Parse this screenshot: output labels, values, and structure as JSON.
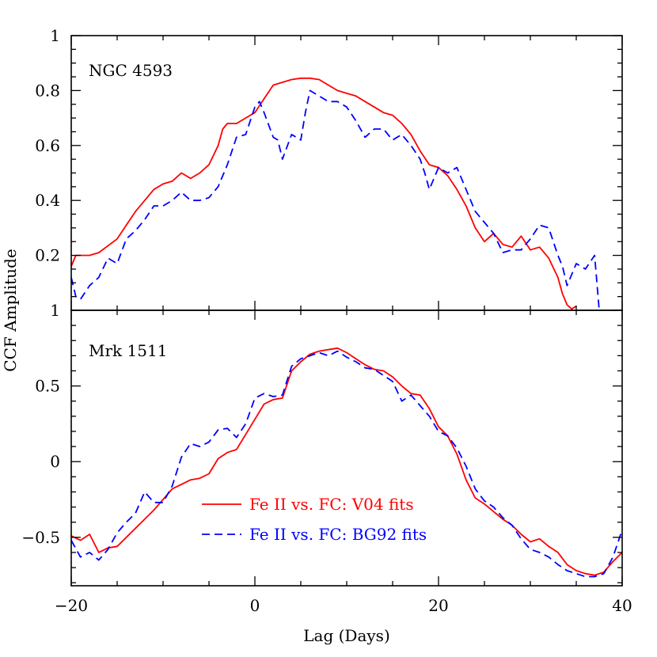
{
  "chart_data": {
    "shared": {
      "xlabel": "Lag (Days)",
      "ylabel": "CCF Amplitude",
      "xlim": [
        -20,
        40
      ],
      "xticks_major": [
        -20,
        0,
        20,
        40
      ],
      "xtick_labels": [
        "−20",
        "0",
        "20",
        "40"
      ],
      "xticks_minor_step": 5,
      "grid": false
    },
    "panels": [
      {
        "type": "line",
        "label": "NGC 4593",
        "ylim": [
          0,
          1
        ],
        "yticks_major": [
          0.2,
          0.4,
          0.6,
          0.8,
          1
        ],
        "ytick_labels": [
          "0.2",
          "0.4",
          "0.6",
          "0.8",
          "1"
        ],
        "yticks_minor_step": 0.05,
        "series": [
          {
            "color": "#ff0000",
            "style": "solid",
            "x": [
              -20,
              -19.5,
              -18,
              -17,
              -15,
              -14,
              -13,
              -12,
              -11,
              -10,
              -9,
              -8,
              -7,
              -6,
              -5,
              -4,
              -3.5,
              -3,
              -2,
              -1,
              0,
              1,
              2,
              3,
              4,
              5,
              6,
              7,
              8,
              9,
              10,
              11,
              12,
              13,
              14,
              15,
              16,
              17,
              18,
              19,
              20,
              21,
              22,
              23,
              24,
              25,
              26,
              27,
              28,
              29,
              30,
              31,
              32,
              33,
              33.5,
              34,
              34.5,
              35
            ],
            "y": [
              0.16,
              0.2,
              0.2,
              0.21,
              0.26,
              0.31,
              0.36,
              0.4,
              0.44,
              0.46,
              0.47,
              0.5,
              0.48,
              0.5,
              0.53,
              0.6,
              0.66,
              0.68,
              0.68,
              0.7,
              0.72,
              0.77,
              0.82,
              0.83,
              0.84,
              0.845,
              0.845,
              0.84,
              0.82,
              0.8,
              0.79,
              0.78,
              0.76,
              0.74,
              0.72,
              0.71,
              0.68,
              0.64,
              0.58,
              0.53,
              0.52,
              0.49,
              0.44,
              0.38,
              0.3,
              0.25,
              0.28,
              0.24,
              0.23,
              0.27,
              0.22,
              0.23,
              0.19,
              0.12,
              0.06,
              0.02,
              0.005,
              0.015
            ]
          },
          {
            "color": "#0000ff",
            "style": "dashed",
            "x": [
              -20,
              -19.5,
              -19,
              -18,
              -17,
              -16,
              -15,
              -14,
              -13,
              -12,
              -11,
              -10,
              -9,
              -8,
              -7,
              -6,
              -5,
              -4,
              -3,
              -2,
              -1,
              0,
              0.5,
              1,
              2,
              2.5,
              3,
              4,
              5,
              5.5,
              6,
              7,
              8,
              9,
              10,
              11,
              12,
              13,
              14,
              15,
              16,
              17,
              18,
              18.5,
              19,
              20,
              21,
              22,
              23,
              24,
              25,
              26,
              27,
              28,
              29,
              30,
              31,
              32,
              33,
              33.5,
              34,
              35,
              36,
              37,
              37.5
            ],
            "y": [
              0.12,
              0.05,
              0.04,
              0.09,
              0.12,
              0.19,
              0.17,
              0.26,
              0.29,
              0.33,
              0.38,
              0.38,
              0.4,
              0.43,
              0.4,
              0.4,
              0.41,
              0.45,
              0.53,
              0.63,
              0.64,
              0.74,
              0.76,
              0.72,
              0.63,
              0.62,
              0.55,
              0.64,
              0.62,
              0.72,
              0.8,
              0.78,
              0.76,
              0.76,
              0.74,
              0.69,
              0.63,
              0.66,
              0.66,
              0.62,
              0.64,
              0.6,
              0.55,
              0.5,
              0.44,
              0.52,
              0.5,
              0.52,
              0.44,
              0.36,
              0.32,
              0.28,
              0.21,
              0.22,
              0.22,
              0.26,
              0.31,
              0.3,
              0.2,
              0.16,
              0.09,
              0.17,
              0.15,
              0.2,
              0.0
            ]
          }
        ]
      },
      {
        "type": "line",
        "label": "Mrk 1511",
        "ylim": [
          -0.82,
          1
        ],
        "yticks_major": [
          -0.5,
          0,
          0.5,
          1
        ],
        "ytick_labels": [
          "−0.5",
          "0",
          "0.5",
          "1"
        ],
        "yticks_minor_step": 0.1,
        "legend_placement": "lower-center",
        "series": [
          {
            "name": "Fe II vs. FC: V04 fits",
            "color": "#ff0000",
            "style": "solid",
            "x": [
              -20,
              -19,
              -18,
              -17,
              -16,
              -15,
              -14,
              -13,
              -12,
              -11,
              -10,
              -9,
              -8,
              -7,
              -6,
              -5,
              -4,
              -3,
              -2,
              -1,
              0,
              1,
              2,
              3,
              4,
              5,
              6,
              7,
              8,
              9,
              10,
              11,
              12,
              13,
              14,
              15,
              16,
              17,
              18,
              19,
              20,
              21,
              22,
              23,
              24,
              25,
              26,
              27,
              28,
              29,
              30,
              31,
              32,
              33,
              34,
              35,
              36,
              37,
              38,
              39,
              40
            ],
            "y": [
              -0.49,
              -0.52,
              -0.48,
              -0.6,
              -0.57,
              -0.56,
              -0.5,
              -0.44,
              -0.38,
              -0.32,
              -0.25,
              -0.18,
              -0.15,
              -0.12,
              -0.11,
              -0.08,
              0.02,
              0.06,
              0.08,
              0.18,
              0.28,
              0.38,
              0.41,
              0.42,
              0.6,
              0.66,
              0.71,
              0.73,
              0.74,
              0.75,
              0.72,
              0.68,
              0.64,
              0.61,
              0.6,
              0.56,
              0.5,
              0.45,
              0.44,
              0.35,
              0.23,
              0.17,
              0.05,
              -0.12,
              -0.24,
              -0.28,
              -0.33,
              -0.38,
              -0.42,
              -0.48,
              -0.53,
              -0.51,
              -0.56,
              -0.6,
              -0.68,
              -0.72,
              -0.74,
              -0.75,
              -0.73,
              -0.66,
              -0.6
            ]
          },
          {
            "name": "Fe II vs. FC: BG92 fits",
            "color": "#0000ff",
            "style": "dashed",
            "x": [
              -20,
              -19,
              -18,
              -17,
              -16,
              -15,
              -14,
              -13,
              -12,
              -11,
              -10,
              -9,
              -8,
              -7,
              -6,
              -5,
              -4,
              -3,
              -2,
              -1,
              0,
              1,
              2,
              3,
              4,
              5,
              6,
              7,
              8,
              9,
              10,
              11,
              12,
              13,
              14,
              15,
              16,
              17,
              18,
              19,
              20,
              21,
              22,
              23,
              24,
              25,
              26,
              27,
              28,
              29,
              30,
              31,
              32,
              33,
              34,
              35,
              36,
              37,
              38,
              39,
              40
            ],
            "y": [
              -0.52,
              -0.63,
              -0.6,
              -0.65,
              -0.58,
              -0.47,
              -0.4,
              -0.34,
              -0.2,
              -0.27,
              -0.27,
              -0.16,
              0.03,
              0.12,
              0.1,
              0.13,
              0.21,
              0.22,
              0.16,
              0.25,
              0.42,
              0.45,
              0.43,
              0.44,
              0.63,
              0.68,
              0.7,
              0.72,
              0.7,
              0.73,
              0.69,
              0.66,
              0.62,
              0.61,
              0.57,
              0.53,
              0.4,
              0.44,
              0.37,
              0.3,
              0.2,
              0.17,
              0.09,
              -0.03,
              -0.18,
              -0.26,
              -0.3,
              -0.37,
              -0.42,
              -0.51,
              -0.58,
              -0.6,
              -0.63,
              -0.68,
              -0.72,
              -0.74,
              -0.76,
              -0.76,
              -0.74,
              -0.63,
              -0.45
            ]
          }
        ]
      }
    ]
  }
}
